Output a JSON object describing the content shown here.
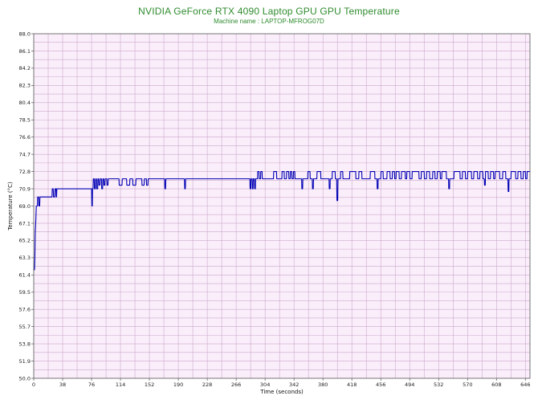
{
  "chart_data": {
    "type": "line",
    "title": "NVIDIA GeForce RTX 4090 Laptop GPU GPU Temperature",
    "subtitle": "Machine name : LAPTOP-MFROG07D",
    "xlabel": "Time (seconds)",
    "ylabel": "Temperature (°C)",
    "xlim": [
      0,
      652
    ],
    "ylim": [
      50.0,
      88.0
    ],
    "grid": true,
    "background_color": "#fbeefb",
    "grid_color": "#c9a9c9",
    "line_color": "#0000b4",
    "x_ticks": [
      "0",
      "38",
      "76",
      "114",
      "152",
      "190",
      "228",
      "266",
      "304",
      "342",
      "380",
      "418",
      "456",
      "494",
      "532",
      "570",
      "608",
      "646"
    ],
    "y_ticks": [
      "50.0",
      "51.9",
      "53.8",
      "55.7",
      "57.6",
      "59.5",
      "61.4",
      "63.3",
      "65.2",
      "67.1",
      "69.0",
      "70.9",
      "72.8",
      "74.7",
      "76.6",
      "78.5",
      "80.4",
      "82.3",
      "84.2",
      "86.1",
      "88.0"
    ],
    "series": [
      {
        "points": [
          [
            0,
            61.9
          ],
          [
            1,
            62.0
          ],
          [
            1.5,
            63.3
          ],
          [
            2,
            66.1
          ],
          [
            2.8,
            67.5
          ],
          [
            3.4,
            69.0
          ],
          [
            4.8,
            69.0
          ],
          [
            5.2,
            70.0
          ],
          [
            6.4,
            70.0
          ],
          [
            6.8,
            69.0
          ],
          [
            7.8,
            69.0
          ],
          [
            8.2,
            70.0
          ],
          [
            24,
            70.0
          ],
          [
            24.4,
            70.9
          ],
          [
            25.6,
            70.9
          ],
          [
            26,
            70.0
          ],
          [
            27.6,
            70.0
          ],
          [
            28,
            70.9
          ],
          [
            29.2,
            70.9
          ],
          [
            29.6,
            70.0
          ],
          [
            30,
            70.0
          ],
          [
            30.4,
            70.9
          ],
          [
            76.0,
            70.9
          ],
          [
            76.4,
            69.0
          ],
          [
            77.0,
            69.0
          ],
          [
            77.3,
            70.9
          ],
          [
            78,
            70.9
          ],
          [
            78.3,
            72.0
          ],
          [
            79.5,
            72.0
          ],
          [
            79.8,
            70.9
          ],
          [
            81,
            70.9
          ],
          [
            81.4,
            72.0
          ],
          [
            82.4,
            72.0
          ],
          [
            82.7,
            70.9
          ],
          [
            84,
            70.9
          ],
          [
            84.4,
            72.0
          ],
          [
            85.4,
            72.0
          ],
          [
            85.7,
            71.3
          ],
          [
            87,
            71.3
          ],
          [
            87.4,
            72.0
          ],
          [
            89,
            72.0
          ],
          [
            89.3,
            70.9
          ],
          [
            90.5,
            70.9
          ],
          [
            90.9,
            72.0
          ],
          [
            92,
            72.0
          ],
          [
            92.3,
            71.3
          ],
          [
            93.5,
            71.3
          ],
          [
            93.9,
            72.0
          ],
          [
            96,
            72.0
          ],
          [
            96.3,
            71.3
          ],
          [
            97.5,
            71.3
          ],
          [
            97.9,
            72.0
          ],
          [
            100,
            72.0
          ],
          [
            112,
            72.0
          ],
          [
            112.3,
            71.3
          ],
          [
            116,
            71.3
          ],
          [
            116.4,
            72.0
          ],
          [
            122,
            72.0
          ],
          [
            122.3,
            71.3
          ],
          [
            126,
            71.3
          ],
          [
            126.4,
            72.0
          ],
          [
            130,
            72.0
          ],
          [
            130.3,
            71.3
          ],
          [
            134,
            71.3
          ],
          [
            134.4,
            72.0
          ],
          [
            142,
            72.0
          ],
          [
            142.3,
            71.3
          ],
          [
            145,
            71.3
          ],
          [
            145.4,
            72.0
          ],
          [
            148,
            72.0
          ],
          [
            148.3,
            71.3
          ],
          [
            150,
            71.3
          ],
          [
            150.4,
            72.0
          ],
          [
            172,
            72.0
          ],
          [
            172.4,
            70.9
          ],
          [
            173.2,
            70.9
          ],
          [
            173.6,
            72.0
          ],
          [
            198,
            72.0
          ],
          [
            198.4,
            70.9
          ],
          [
            199.2,
            70.9
          ],
          [
            199.6,
            72.0
          ],
          [
            284,
            72.0
          ],
          [
            284.3,
            70.9
          ],
          [
            285.2,
            70.9
          ],
          [
            285.5,
            72.0
          ],
          [
            287,
            72.0
          ],
          [
            287.3,
            70.9
          ],
          [
            288.2,
            70.9
          ],
          [
            288.5,
            72.0
          ],
          [
            290,
            72.0
          ],
          [
            290.3,
            70.9
          ],
          [
            291.2,
            70.9
          ],
          [
            291.5,
            72.0
          ],
          [
            294,
            72.0
          ],
          [
            294.3,
            72.8
          ],
          [
            296,
            72.8
          ],
          [
            296.3,
            72.0
          ],
          [
            298,
            72.0
          ],
          [
            298.3,
            72.8
          ],
          [
            300,
            72.8
          ],
          [
            300.3,
            72.0
          ],
          [
            315,
            72.0
          ],
          [
            315.3,
            72.8
          ],
          [
            319,
            72.8
          ],
          [
            319.3,
            72.0
          ],
          [
            326,
            72.0
          ],
          [
            326.3,
            72.8
          ],
          [
            329,
            72.8
          ],
          [
            329.3,
            72.0
          ],
          [
            332,
            72.0
          ],
          [
            332.3,
            72.8
          ],
          [
            335,
            72.8
          ],
          [
            335.3,
            72.0
          ],
          [
            337,
            72.0
          ],
          [
            337.3,
            72.8
          ],
          [
            339,
            72.8
          ],
          [
            339.3,
            72.0
          ],
          [
            341,
            72.0
          ],
          [
            341.3,
            72.8
          ],
          [
            343,
            72.8
          ],
          [
            343.3,
            72.0
          ],
          [
            352,
            72.0
          ],
          [
            352.3,
            70.9
          ],
          [
            353.3,
            70.9
          ],
          [
            353.6,
            72.0
          ],
          [
            360,
            72.0
          ],
          [
            360.3,
            72.8
          ],
          [
            363,
            72.8
          ],
          [
            363.3,
            72.0
          ],
          [
            366,
            72.0
          ],
          [
            366.3,
            70.9
          ],
          [
            367.3,
            70.9
          ],
          [
            367.6,
            72.0
          ],
          [
            372,
            72.0
          ],
          [
            372.3,
            72.8
          ],
          [
            377,
            72.8
          ],
          [
            377.3,
            72.0
          ],
          [
            388,
            72.0
          ],
          [
            388.3,
            70.9
          ],
          [
            389.3,
            70.9
          ],
          [
            389.6,
            72.0
          ],
          [
            392,
            72.0
          ],
          [
            392.3,
            72.8
          ],
          [
            396,
            72.8
          ],
          [
            396.3,
            72.0
          ],
          [
            398,
            72.0
          ],
          [
            398.4,
            69.6
          ],
          [
            399.4,
            69.6
          ],
          [
            399.8,
            72.0
          ],
          [
            403,
            72.0
          ],
          [
            403.3,
            72.8
          ],
          [
            406,
            72.8
          ],
          [
            406.3,
            72.0
          ],
          [
            415,
            72.0
          ],
          [
            415.3,
            72.8
          ],
          [
            423,
            72.8
          ],
          [
            423.3,
            72.0
          ],
          [
            427,
            72.0
          ],
          [
            427.3,
            72.8
          ],
          [
            431,
            72.8
          ],
          [
            431.3,
            72.0
          ],
          [
            442,
            72.0
          ],
          [
            442.3,
            72.8
          ],
          [
            448,
            72.8
          ],
          [
            448.3,
            72.0
          ],
          [
            451,
            72.0
          ],
          [
            451.3,
            70.9
          ],
          [
            452.3,
            70.9
          ],
          [
            452.6,
            72.0
          ],
          [
            456,
            72.0
          ],
          [
            456.3,
            72.8
          ],
          [
            459,
            72.8
          ],
          [
            459.3,
            72.0
          ],
          [
            464,
            72.0
          ],
          [
            464.3,
            72.8
          ],
          [
            468,
            72.8
          ],
          [
            468.3,
            72.0
          ],
          [
            471,
            72.0
          ],
          [
            471.3,
            72.8
          ],
          [
            474,
            72.8
          ],
          [
            474.3,
            72.0
          ],
          [
            476,
            72.0
          ],
          [
            476.3,
            72.8
          ],
          [
            480,
            72.8
          ],
          [
            480.3,
            72.0
          ],
          [
            483,
            72.0
          ],
          [
            483.3,
            72.8
          ],
          [
            488,
            72.8
          ],
          [
            488.3,
            72.0
          ],
          [
            490,
            72.0
          ],
          [
            490.3,
            72.8
          ],
          [
            494,
            72.8
          ],
          [
            494.3,
            72.0
          ],
          [
            497,
            72.0
          ],
          [
            497.3,
            72.8
          ],
          [
            506,
            72.8
          ],
          [
            506.3,
            72.0
          ],
          [
            509,
            72.0
          ],
          [
            509.3,
            72.8
          ],
          [
            513,
            72.8
          ],
          [
            513.3,
            72.0
          ],
          [
            516,
            72.0
          ],
          [
            516.3,
            72.8
          ],
          [
            520,
            72.8
          ],
          [
            520.3,
            72.0
          ],
          [
            524,
            72.0
          ],
          [
            524.3,
            72.8
          ],
          [
            527,
            72.8
          ],
          [
            527.3,
            72.0
          ],
          [
            530,
            72.0
          ],
          [
            530.3,
            72.8
          ],
          [
            534,
            72.8
          ],
          [
            534.3,
            72.0
          ],
          [
            536,
            72.0
          ],
          [
            536.3,
            72.8
          ],
          [
            542,
            72.8
          ],
          [
            542.3,
            72.0
          ],
          [
            545,
            72.0
          ],
          [
            545.3,
            70.9
          ],
          [
            546.3,
            70.9
          ],
          [
            546.6,
            72.0
          ],
          [
            552,
            72.0
          ],
          [
            552.3,
            72.8
          ],
          [
            560,
            72.8
          ],
          [
            560.3,
            72.0
          ],
          [
            563,
            72.0
          ],
          [
            563.3,
            72.8
          ],
          [
            567,
            72.8
          ],
          [
            567.3,
            72.0
          ],
          [
            570,
            72.0
          ],
          [
            570.3,
            72.8
          ],
          [
            575,
            72.8
          ],
          [
            575.3,
            72.0
          ],
          [
            578,
            72.0
          ],
          [
            578.3,
            72.8
          ],
          [
            583,
            72.8
          ],
          [
            583.3,
            72.0
          ],
          [
            586,
            72.0
          ],
          [
            586.3,
            72.8
          ],
          [
            590,
            72.8
          ],
          [
            590.3,
            72.0
          ],
          [
            592,
            72.0
          ],
          [
            592.3,
            71.3
          ],
          [
            593.3,
            71.3
          ],
          [
            593.6,
            72.8
          ],
          [
            597,
            72.8
          ],
          [
            597.3,
            72.0
          ],
          [
            600,
            72.0
          ],
          [
            600.3,
            72.8
          ],
          [
            604,
            72.8
          ],
          [
            604.3,
            72.0
          ],
          [
            606,
            72.0
          ],
          [
            606.3,
            72.8
          ],
          [
            612,
            72.8
          ],
          [
            612.3,
            72.0
          ],
          [
            616,
            72.0
          ],
          [
            616.3,
            72.8
          ],
          [
            620,
            72.8
          ],
          [
            620.3,
            72.0
          ],
          [
            623,
            72.0
          ],
          [
            623.4,
            70.6
          ],
          [
            624.2,
            70.6
          ],
          [
            624.5,
            72.0
          ],
          [
            627,
            72.0
          ],
          [
            627.3,
            72.8
          ],
          [
            633,
            72.8
          ],
          [
            633.3,
            72.0
          ],
          [
            636,
            72.0
          ],
          [
            636.3,
            72.8
          ],
          [
            640,
            72.8
          ],
          [
            640.3,
            72.0
          ],
          [
            643,
            72.0
          ],
          [
            643.3,
            72.8
          ],
          [
            646,
            72.8
          ],
          [
            646.3,
            72.0
          ],
          [
            648,
            72.0
          ],
          [
            648.3,
            72.8
          ],
          [
            652,
            72.8
          ]
        ]
      }
    ]
  }
}
